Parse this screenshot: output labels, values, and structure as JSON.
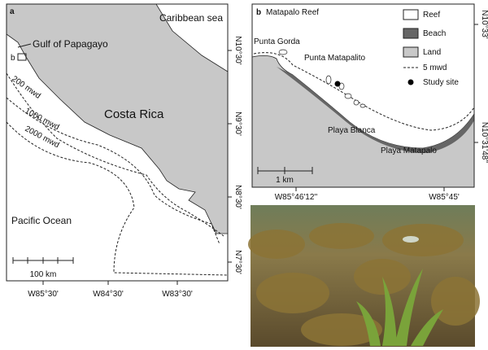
{
  "panel_a": {
    "label": "a",
    "sea_north": "Caribbean sea",
    "gulf": "Gulf of Papagayo",
    "inset_label": "b",
    "country": "Costa Rica",
    "depth_contours": [
      "200 mwd",
      "1000 mwd",
      "2000 mwd"
    ],
    "ocean": "Pacific Ocean",
    "scale_bar": "100 km",
    "lat_labels": [
      "N10°30'",
      "N9°30'",
      "N8°30'",
      "N7°30'"
    ],
    "lon_labels": [
      "W85°30'",
      "W84°30'",
      "W83°30'"
    ]
  },
  "panel_b": {
    "label": "b",
    "title": "Matapalo Reef",
    "legend": [
      "Reef",
      "Beach",
      "Land",
      "5 mwd",
      "Study site"
    ],
    "places": [
      "Punta Gorda",
      "Punta Matapalito",
      "Playa Blanca",
      "Playa Matapalo"
    ],
    "scale_bar": "1 km",
    "lat_labels": [
      "N10°33'",
      "N10°31'48''"
    ],
    "lon_labels": [
      "W85°46'12''",
      "W85°45'"
    ]
  }
}
